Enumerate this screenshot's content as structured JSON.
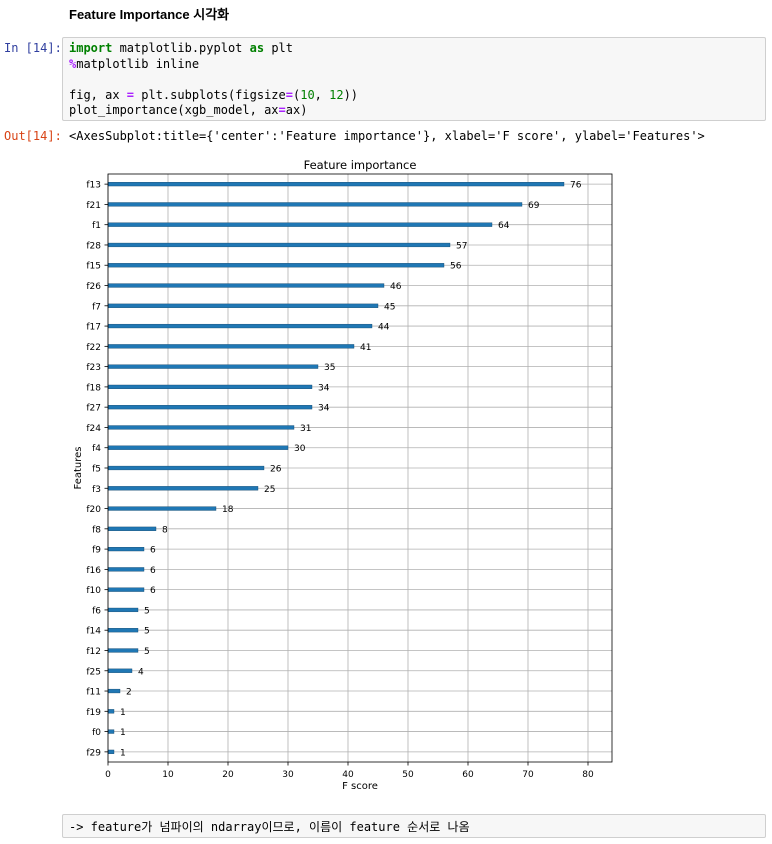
{
  "notebook": {
    "heading": "Feature Importance 시각화",
    "in_prompt": "In [14]:",
    "out_prompt": "Out[14]:",
    "code": {
      "line1": {
        "kw1": "import",
        "mod": " matplotlib.pyplot ",
        "kw2": "as",
        "alias": " plt"
      },
      "line2": {
        "magic": "%",
        "rest": "matplotlib inline"
      },
      "line4": {
        "a": "fig, ax ",
        "eq": "=",
        "b": " plt.subplots(figsize",
        "eq2": "=",
        "c": "(",
        "n1": "10",
        "d": ", ",
        "n2": "12",
        "e": "))"
      },
      "line5": {
        "a": "plot_importance(xgb_model, ax",
        "eq": "=",
        "b": "ax)"
      }
    },
    "output_repr": "<AxesSubplot:title={'center':'Feature importance'}, xlabel='F score', ylabel='Features'>",
    "markdown_note": "-> feature가 넘파이의 ndarray이므로, 이름이 feature 순서로 나옴"
  },
  "colors": {
    "bar": "#1f77b4",
    "grid": "#b0b0b0"
  },
  "chart_data": {
    "type": "bar",
    "orientation": "horizontal",
    "title": "Feature importance",
    "xlabel": "F score",
    "ylabel": "Features",
    "xlim": [
      0,
      84
    ],
    "xticks": [
      0,
      10,
      20,
      30,
      40,
      50,
      60,
      70,
      80
    ],
    "grid": true,
    "categories": [
      "f13",
      "f21",
      "f1",
      "f28",
      "f15",
      "f26",
      "f7",
      "f17",
      "f22",
      "f23",
      "f18",
      "f27",
      "f24",
      "f4",
      "f5",
      "f3",
      "f20",
      "f8",
      "f9",
      "f16",
      "f10",
      "f6",
      "f14",
      "f12",
      "f25",
      "f11",
      "f19",
      "f0",
      "f29"
    ],
    "values": [
      76,
      69,
      64,
      57,
      56,
      46,
      45,
      44,
      41,
      35,
      34,
      34,
      31,
      30,
      26,
      25,
      18,
      8,
      6,
      6,
      6,
      5,
      5,
      5,
      4,
      2,
      1,
      1,
      1
    ]
  }
}
